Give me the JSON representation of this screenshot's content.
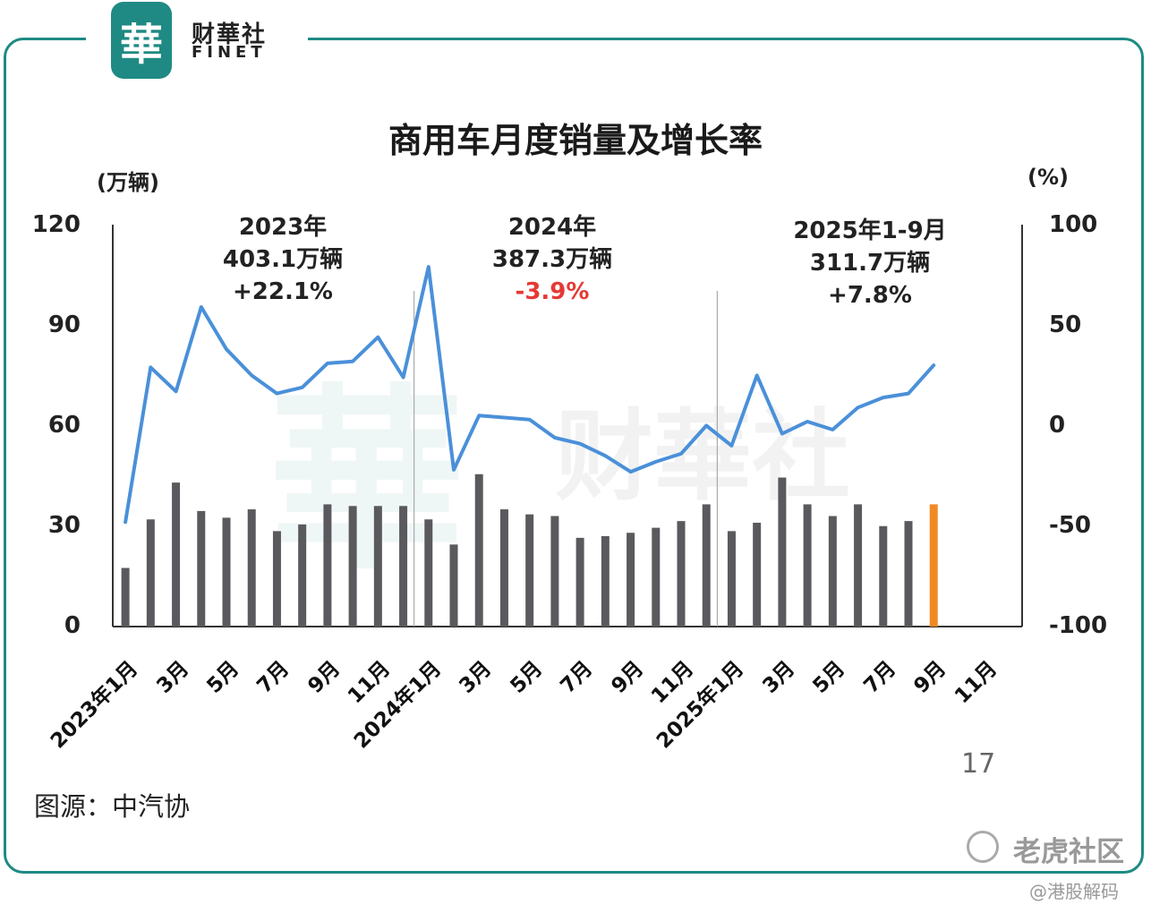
{
  "brand": {
    "badge": "華",
    "name_cn": "财華社",
    "name_en": "FINET"
  },
  "title": "商用车月度销量及增长率",
  "left_unit": "(万辆)",
  "right_unit": "(%)",
  "left_ticks": [
    "120",
    "90",
    "60",
    "30",
    "0"
  ],
  "right_ticks": [
    "100",
    "50",
    "0",
    "-50",
    "-100"
  ],
  "annotations": [
    {
      "line1": "2023年",
      "line2": "403.1万辆",
      "line3": "+22.1%"
    },
    {
      "line1": "2024年",
      "line2": "387.3万辆",
      "line3": "-3.9%"
    },
    {
      "line1": "2025年1-9月",
      "line2": "311.7万辆",
      "line3": "+7.8%"
    }
  ],
  "x_labels": [
    "2023年1月",
    "3月",
    "5月",
    "7月",
    "9月",
    "11月",
    "2024年1月",
    "3月",
    "5月",
    "7月",
    "9月",
    "11月",
    "2025年1月",
    "3月",
    "5月",
    "7月",
    "9月",
    "11月"
  ],
  "page_number": "17",
  "source": "图源：中汽协",
  "watermark": {
    "site": "老虎社区",
    "handle": "@港股解码"
  },
  "colors": {
    "bar": "#5a5a5e",
    "bar_highlight": "#f08a24",
    "line": "#4a90d9",
    "frame": "#1e8a83",
    "negative": "#e53935"
  },
  "chart_data": {
    "type": "bar+line",
    "title": "商用车月度销量及增长率",
    "categories": [
      "2023-01",
      "2023-02",
      "2023-03",
      "2023-04",
      "2023-05",
      "2023-06",
      "2023-07",
      "2023-08",
      "2023-09",
      "2023-10",
      "2023-11",
      "2023-12",
      "2024-01",
      "2024-02",
      "2024-03",
      "2024-04",
      "2024-05",
      "2024-06",
      "2024-07",
      "2024-08",
      "2024-09",
      "2024-10",
      "2024-11",
      "2024-12",
      "2025-01",
      "2025-02",
      "2025-03",
      "2025-04",
      "2025-05",
      "2025-06",
      "2025-07",
      "2025-08",
      "2025-09",
      "2025-10",
      "2025-11",
      "2025-12"
    ],
    "series": [
      {
        "name": "销量(万辆)",
        "axis": "left",
        "type": "bar",
        "values": [
          17.5,
          32,
          43,
          34.5,
          32.5,
          35,
          28.5,
          30.5,
          36.5,
          36,
          36,
          36,
          32,
          24.5,
          45.5,
          35,
          33.5,
          33,
          26.5,
          27,
          28,
          29.5,
          31.5,
          36.5,
          28.5,
          31,
          44.5,
          36.5,
          33,
          36.5,
          30,
          31.5,
          36.5,
          null,
          null,
          null
        ]
      },
      {
        "name": "增长率(%)",
        "axis": "right",
        "type": "line",
        "values": [
          -48,
          29,
          17,
          59,
          38,
          25,
          16,
          19,
          31,
          32,
          44,
          24,
          79,
          -22,
          5,
          4,
          3,
          -6,
          -9,
          -15,
          -23,
          -18,
          -14,
          0,
          -10,
          25,
          -4,
          2,
          -2,
          9,
          14,
          16,
          30,
          null,
          null,
          null
        ]
      }
    ],
    "ylim_left": [
      0,
      120
    ],
    "ylim_right": [
      -100,
      100
    ],
    "ylabel_left": "(万辆)",
    "ylabel_right": "(%)",
    "highlight_index": 32
  }
}
